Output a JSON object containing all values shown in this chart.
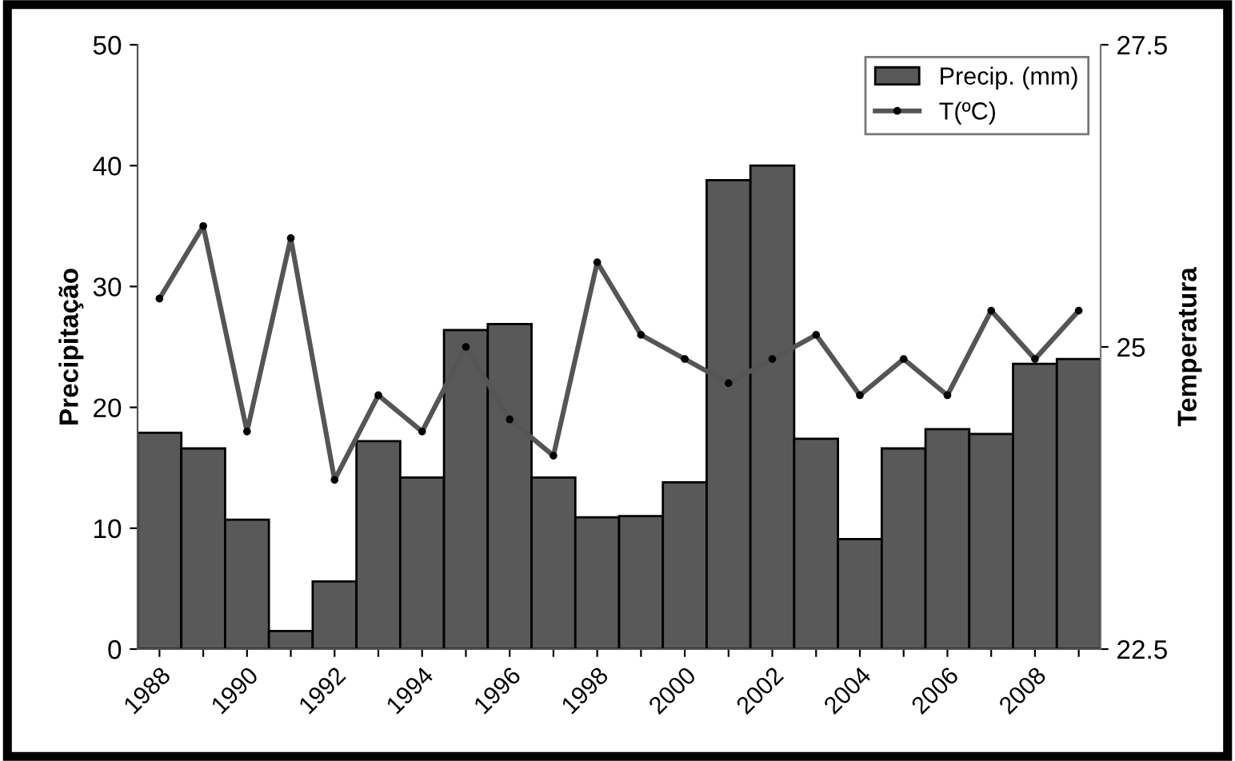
{
  "chart_data": {
    "type": "bar",
    "ylabel": "Precipitação",
    "y2label": "Temperatura",
    "categories": [
      "1988",
      null,
      "1990",
      null,
      "1992",
      null,
      "1994",
      null,
      "1996",
      null,
      "1998",
      null,
      "2000",
      null,
      "2002",
      null,
      "2004",
      null,
      "2006",
      null,
      "2008",
      null
    ],
    "series": [
      {
        "name": "Precip. (mm)",
        "color": "#595959",
        "values": [
          17.9,
          16.6,
          10.7,
          1.5,
          5.6,
          17.2,
          14.2,
          26.4,
          26.9,
          14.2,
          10.9,
          11.0,
          13.8,
          38.8,
          40.0,
          17.4,
          9.1,
          16.6,
          18.2,
          17.8,
          23.6,
          24.0
        ]
      },
      {
        "name": "T(ºC)",
        "type": "line",
        "axis": "y2",
        "color": "#555555",
        "marker": "circle",
        "line_style": "solid",
        "values": [
          25.4,
          26.0,
          24.3,
          25.9,
          23.9,
          24.6,
          24.3,
          25.0,
          24.4,
          24.1,
          25.7,
          25.1,
          24.9,
          24.7,
          24.9,
          25.1,
          24.6,
          24.9,
          24.6,
          25.3,
          24.9,
          25.3
        ]
      }
    ],
    "ylim": [
      0,
      50
    ],
    "yticks": [
      0,
      10,
      20,
      30,
      40,
      50
    ],
    "y2lim": [
      22.5,
      27.5
    ],
    "y2ticks": [
      22.5,
      25,
      27.5
    ],
    "grid": false,
    "legend": "top right"
  }
}
